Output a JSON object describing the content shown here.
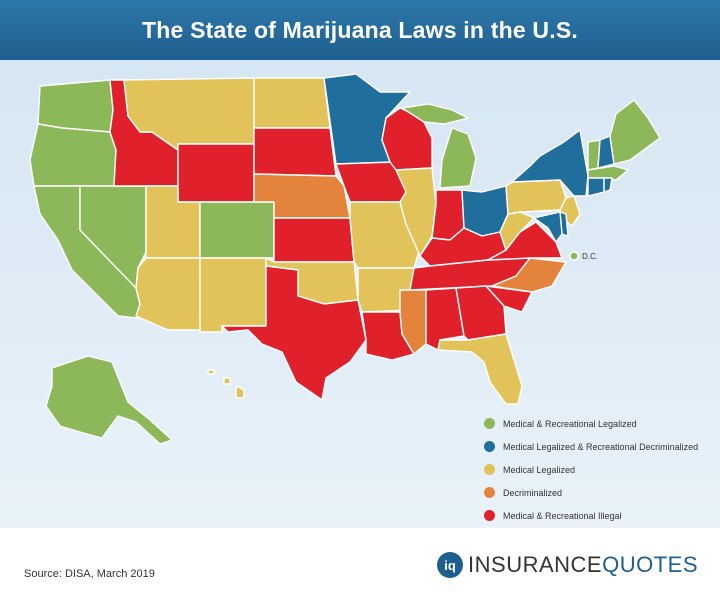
{
  "title": "The State of Marijuana Laws in the U.S.",
  "colors": {
    "medical_recreational_legalized": "#8db85a",
    "medical_legalized_recreational_decriminalized": "#1f6e9c",
    "medical_legalized": "#e2c35a",
    "decriminalized": "#e4843c",
    "illegal": "#e0202a"
  },
  "legend": {
    "items": [
      {
        "label": "Medical & Recreational Legalized",
        "color": "#8db85a"
      },
      {
        "label": "Medical Legalized & Recreational Decriminalized",
        "color": "#1f6e9c"
      },
      {
        "label": "Medical Legalized",
        "color": "#e2c35a"
      },
      {
        "label": "Decriminalized",
        "color": "#e4843c"
      },
      {
        "label": "Medical & Recreational Illegal",
        "color": "#e0202a"
      }
    ]
  },
  "dc_label": "D.C.",
  "source": "Source: DISA, March 2019",
  "logo": {
    "mark": "iq",
    "word1": "INSURANCE",
    "word2": "QUOTES"
  }
}
